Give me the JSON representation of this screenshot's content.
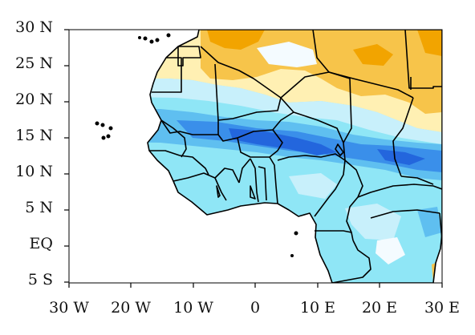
{
  "map": {
    "type": "filled-contour-map",
    "region": "West Africa",
    "lon_range": [
      -30,
      30
    ],
    "lat_range": [
      -5,
      30
    ],
    "x_ticks": [
      "30 W",
      "20 W",
      "10 W",
      "0",
      "10 E",
      "20 E",
      "30 E"
    ],
    "y_ticks": [
      "30 N",
      "25 N",
      "20 N",
      "15 N",
      "10 N",
      "5 N",
      "EQ",
      "5 S"
    ],
    "colors": {
      "ocean": "#ffffff",
      "dark_orange": "#f2a400",
      "orange": "#f7c44a",
      "light_yellow": "#fff0b3",
      "near_zero": "#f4fbff",
      "pale_cyan": "#c8f0fb",
      "cyan": "#8fe6f6",
      "light_blue": "#5fbff0",
      "mid_blue": "#3a8fea",
      "deep_blue": "#2366dd",
      "borders": "#000000"
    }
  }
}
